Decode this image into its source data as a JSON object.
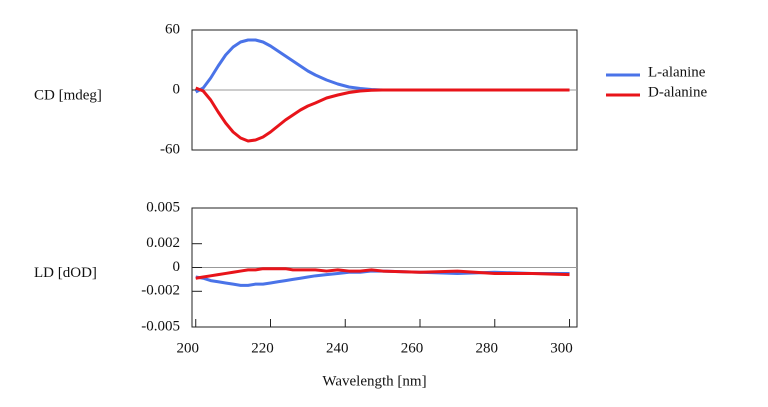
{
  "chart_data": [
    {
      "type": "line",
      "ylabel": "CD [mdeg]",
      "legend": "right",
      "x": [
        200,
        202,
        204,
        206,
        208,
        210,
        212,
        214,
        216,
        218,
        220,
        222,
        224,
        226,
        228,
        230,
        232,
        235,
        238,
        241,
        244,
        247,
        250,
        260,
        270,
        280,
        290,
        300
      ],
      "xlim": [
        199,
        302
      ],
      "ylim": [
        -60,
        60
      ],
      "yticks": [
        60,
        0,
        -60
      ],
      "series": [
        {
          "name": "L-alanine",
          "color": "#4a73e8",
          "values": [
            -2,
            2,
            12,
            24,
            35,
            43,
            48,
            50,
            50,
            48,
            44,
            39,
            34,
            29,
            24,
            19,
            15,
            10,
            6,
            3,
            1.5,
            0.5,
            0,
            0,
            0,
            0,
            0,
            0
          ]
        },
        {
          "name": "D-alanine",
          "color": "#e8141a",
          "values": [
            2,
            -1,
            -10,
            -22,
            -33,
            -42,
            -48,
            -51,
            -50,
            -47,
            -42,
            -36,
            -30,
            -25,
            -20,
            -16,
            -13,
            -8,
            -5,
            -2.5,
            -1,
            -0.3,
            0,
            0,
            0,
            0,
            0,
            0
          ]
        }
      ]
    },
    {
      "type": "line",
      "ylabel": "LD [dOD]",
      "xlabel": "Wavelength [nm]",
      "x": [
        200,
        202,
        204,
        206,
        208,
        210,
        212,
        214,
        216,
        218,
        220,
        222,
        224,
        226,
        228,
        230,
        232,
        235,
        238,
        241,
        244,
        247,
        250,
        260,
        270,
        280,
        290,
        300
      ],
      "xlim": [
        199,
        302
      ],
      "xticks": [
        200,
        220,
        240,
        260,
        280,
        300
      ],
      "ylim": [
        -0.005,
        0.005
      ],
      "yticks": [
        0.005,
        0.002,
        0,
        -0.002,
        -0.005
      ],
      "series": [
        {
          "color": "#4a73e8",
          "values": [
            -0.0008,
            -0.0009,
            -0.0011,
            -0.0012,
            -0.0013,
            -0.0014,
            -0.0015,
            -0.0015,
            -0.0014,
            -0.0014,
            -0.0013,
            -0.0012,
            -0.0011,
            -0.001,
            -0.0009,
            -0.0008,
            -0.0007,
            -0.0006,
            -0.0005,
            -0.0004,
            -0.0004,
            -0.0003,
            -0.0003,
            -0.0004,
            -0.0005,
            -0.0004,
            -0.0005,
            -0.0005
          ]
        },
        {
          "color": "#e8141a",
          "values": [
            -0.0009,
            -0.0008,
            -0.0007,
            -0.0006,
            -0.0005,
            -0.0004,
            -0.0003,
            -0.0002,
            -0.0002,
            -0.0001,
            -0.0001,
            -0.0001,
            -0.0001,
            -0.0002,
            -0.0002,
            -0.0002,
            -0.0002,
            -0.0003,
            -0.0002,
            -0.0003,
            -0.0003,
            -0.0002,
            -0.0003,
            -0.0004,
            -0.0003,
            -0.0005,
            -0.0005,
            -0.0006
          ]
        }
      ]
    }
  ]
}
